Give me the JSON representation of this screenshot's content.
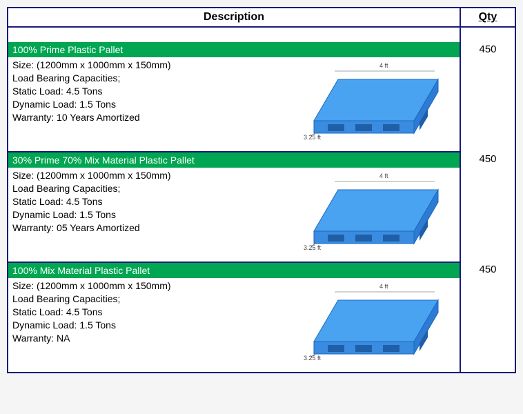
{
  "headers": {
    "description": "Description",
    "qty": "Qty"
  },
  "pallet_image": {
    "top_color": "#4aa3f0",
    "side_color": "#2d7bd4",
    "front_color": "#3a8ce0",
    "stroke": "#1a6abf",
    "dim_top": "4 ft",
    "dim_left": "3.25 ft"
  },
  "items": [
    {
      "title": "100% Prime Plastic Pallet",
      "qty": "450",
      "specs": [
        "Size: (1200mm x 1000mm x 150mm)",
        "Load Bearing Capacities;",
        "Static Load: 4.5 Tons",
        "Dynamic Load: 1.5 Tons",
        "Warranty: 10 Years Amortized"
      ]
    },
    {
      "title": "30% Prime 70% Mix Material Plastic Pallet",
      "qty": "450",
      "specs": [
        "Size: (1200mm x 1000mm x 150mm)",
        "Load Bearing Capacities;",
        "Static Load: 4.5 Tons",
        "Dynamic Load: 1.5 Tons",
        "Warranty: 05 Years Amortized"
      ]
    },
    {
      "title": "100% Mix Material Plastic Pallet",
      "qty": "450",
      "specs": [
        "Size: (1200mm x 1000mm x 150mm)",
        "Load Bearing Capacities;",
        "Static Load: 4.5 Tons",
        "Dynamic Load: 1.5 Tons",
        "Warranty: NA"
      ]
    }
  ]
}
